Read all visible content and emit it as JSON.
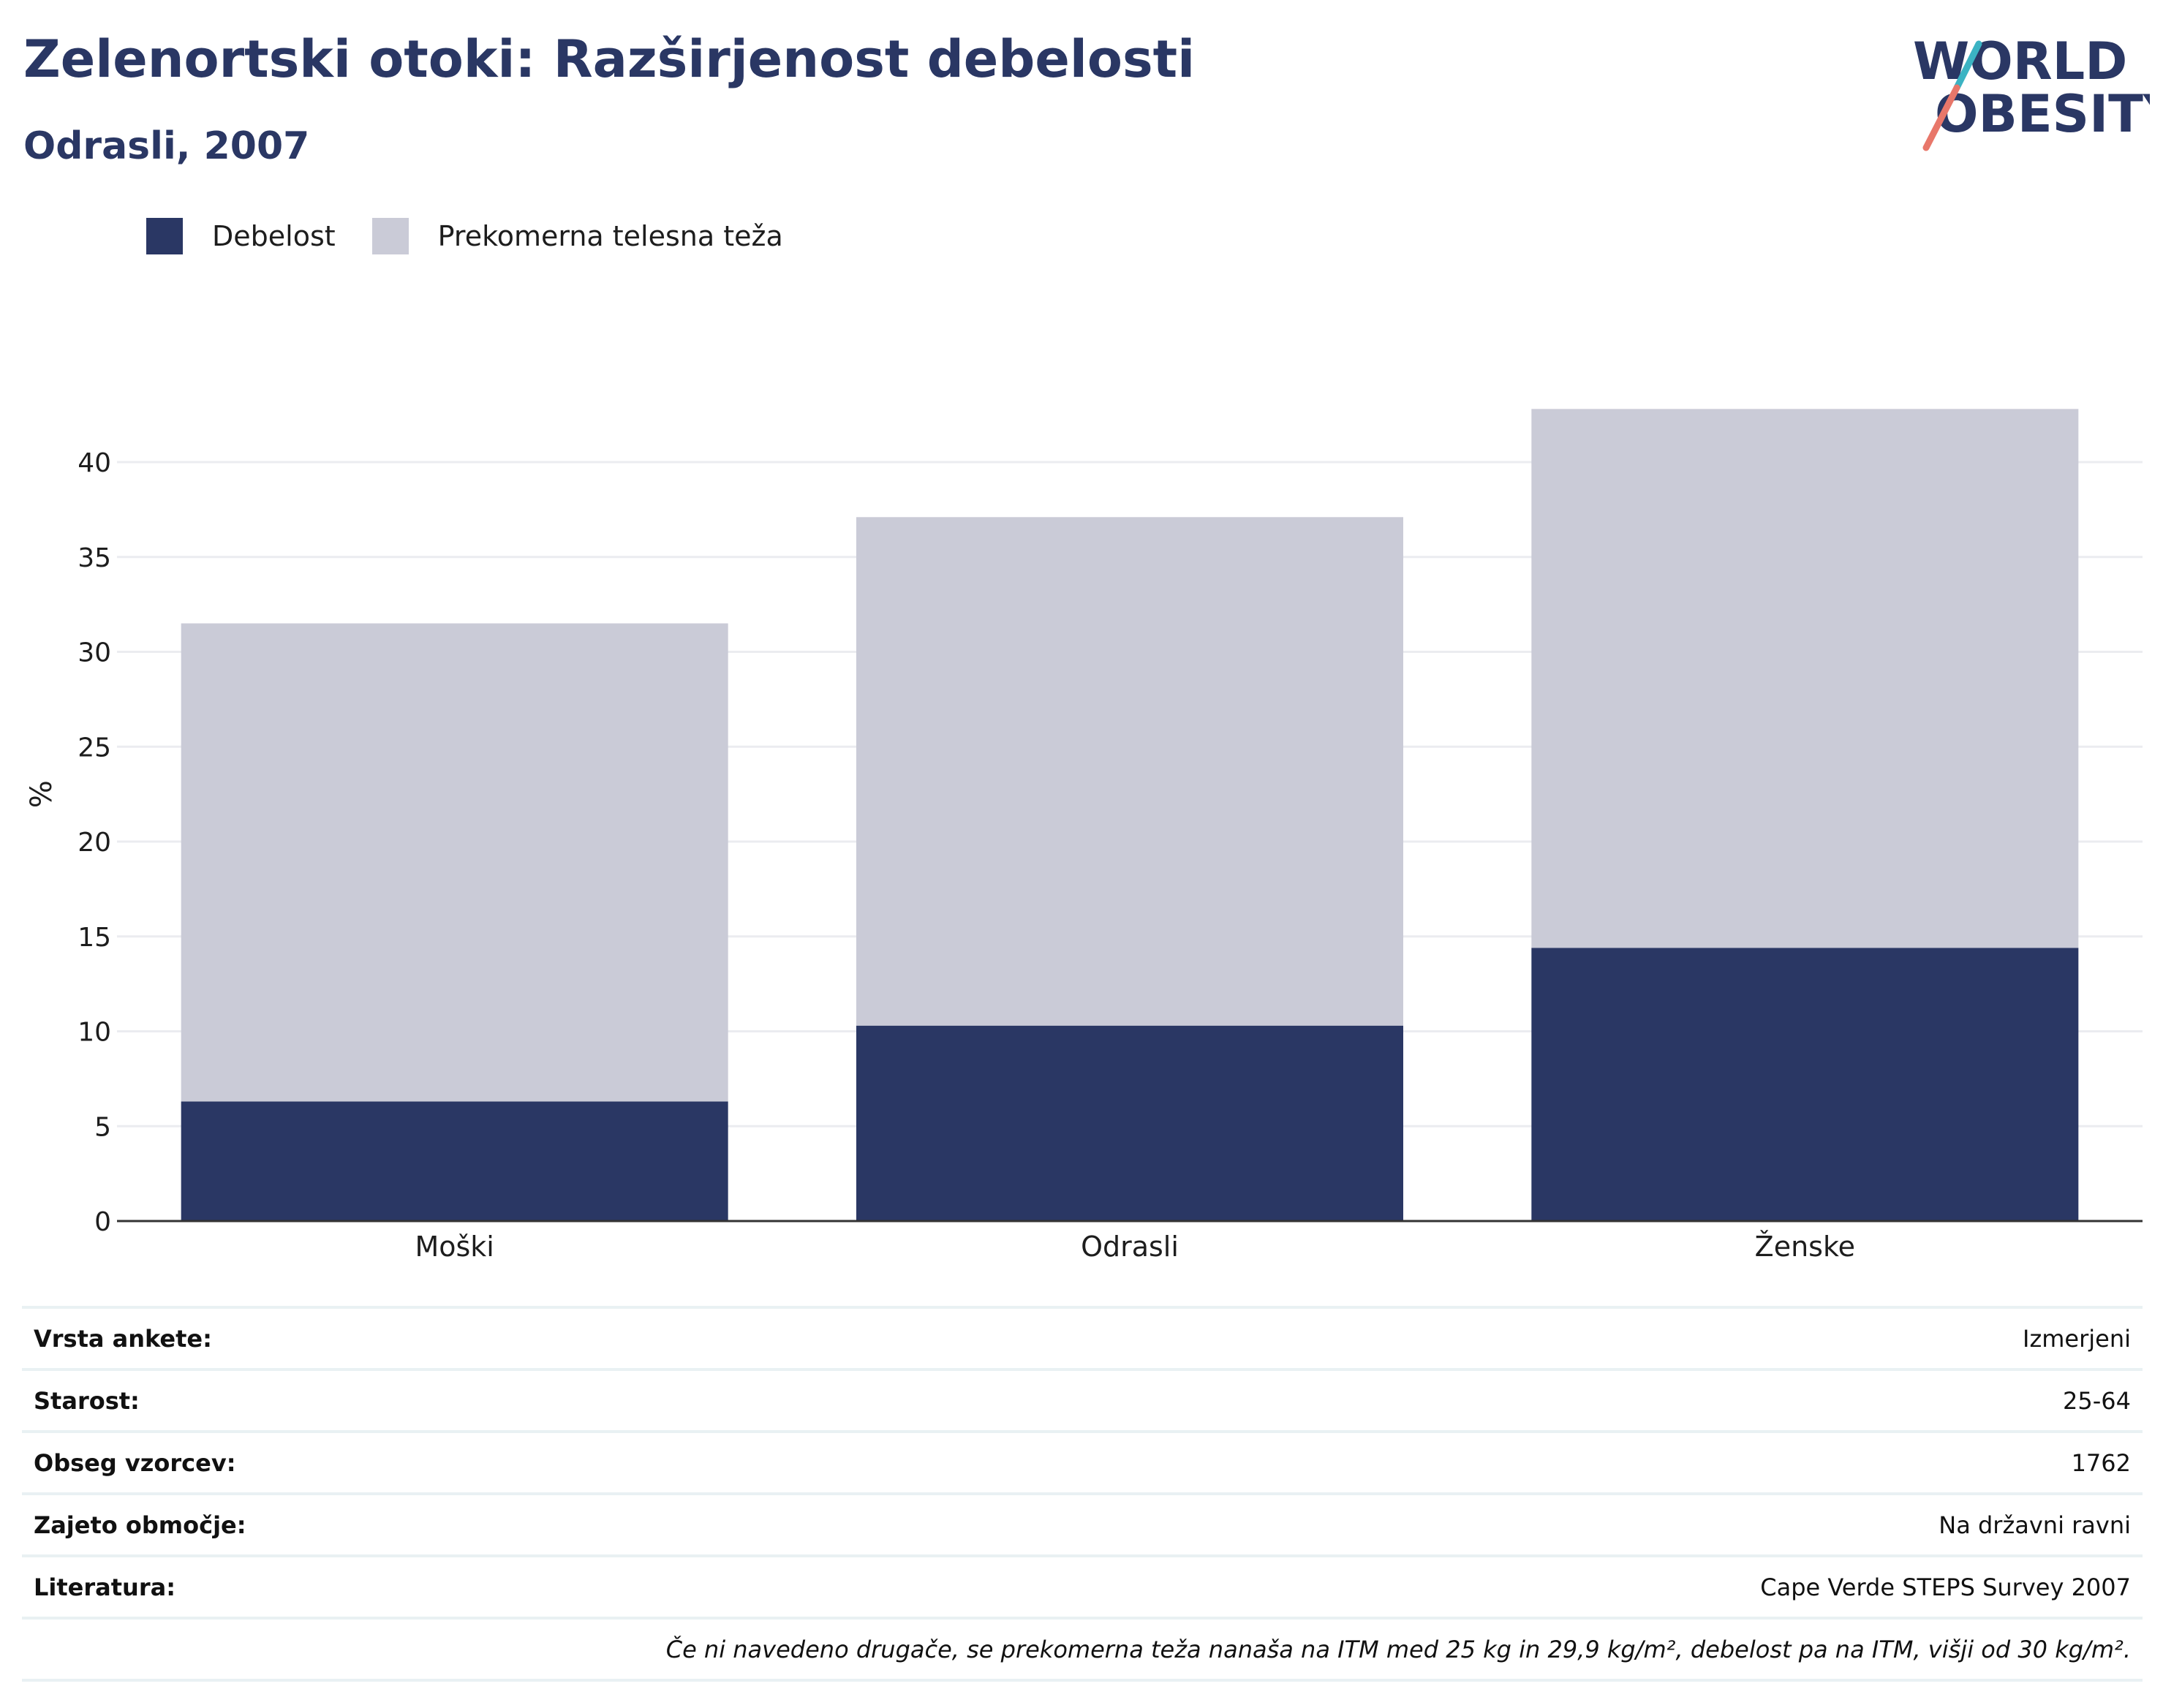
{
  "header": {
    "title": "Zelenortski otoki: Razširjenost debelosti",
    "subtitle": "Odrasli, 2007"
  },
  "logo": {
    "line1": "WORLD",
    "line2": "OBESITY"
  },
  "colors": {
    "title": "#2a3764",
    "obesity": "#2a3764",
    "overweight": "#cacbd7",
    "grid": "#ebecf0",
    "axis": "#333333"
  },
  "chart_data": {
    "type": "bar",
    "stacked": true,
    "categories": [
      "Moški",
      "Odrasli",
      "Ženske"
    ],
    "series": [
      {
        "name": "Debelost",
        "values": [
          6.3,
          10.3,
          14.4
        ],
        "color": "#2a3764"
      },
      {
        "name": "Prekomerna telesna teža",
        "values": [
          25.2,
          26.8,
          28.4
        ],
        "color": "#cacbd7"
      }
    ],
    "title": "",
    "xlabel": "",
    "ylabel": "%",
    "ylim": [
      0,
      45
    ],
    "yticks": [
      0,
      5,
      10,
      15,
      20,
      25,
      30,
      35,
      40
    ],
    "grid": true,
    "legend": "top-left"
  },
  "info": {
    "rows": [
      {
        "label": "Vrsta ankete:",
        "value": "Izmerjeni"
      },
      {
        "label": "Starost:",
        "value": "25-64"
      },
      {
        "label": "Obseg vzorcev:",
        "value": "1762"
      },
      {
        "label": "Zajeto območje:",
        "value": "Na državni ravni"
      },
      {
        "label": "Literatura:",
        "value": "Cape Verde STEPS Survey 2007"
      }
    ],
    "footnote": "Če ni navedeno drugače, se prekomerna teža nanaša na ITM med 25 kg in 29,9 kg/m², debelost pa na ITM, višji od 30 kg/m²."
  }
}
